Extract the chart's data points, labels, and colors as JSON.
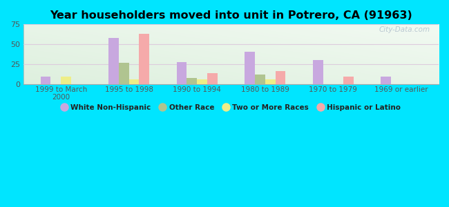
{
  "title": "Year householders moved into unit in Potrero, CA (91963)",
  "categories": [
    "1999 to March\n2000",
    "1995 to 1998",
    "1990 to 1994",
    "1980 to 1989",
    "1970 to 1979",
    "1969 or earlier"
  ],
  "series": {
    "White Non-Hispanic": [
      9,
      58,
      28,
      41,
      30,
      9
    ],
    "Other Race": [
      0,
      27,
      8,
      12,
      0,
      0
    ],
    "Two or More Races": [
      9,
      6,
      6,
      6,
      0,
      0
    ],
    "Hispanic or Latino": [
      0,
      63,
      14,
      16,
      9,
      0
    ]
  },
  "colors": {
    "White Non-Hispanic": "#c8a8df",
    "Other Race": "#b0c490",
    "Two or More Races": "#eeee88",
    "Hispanic or Latino": "#f5aaaa"
  },
  "ylim": [
    0,
    75
  ],
  "yticks": [
    0,
    25,
    50,
    75
  ],
  "background_color": "#00e5ff",
  "watermark": "City-Data.com",
  "bar_width": 0.15,
  "figsize": [
    6.5,
    3.0
  ],
  "dpi": 100
}
